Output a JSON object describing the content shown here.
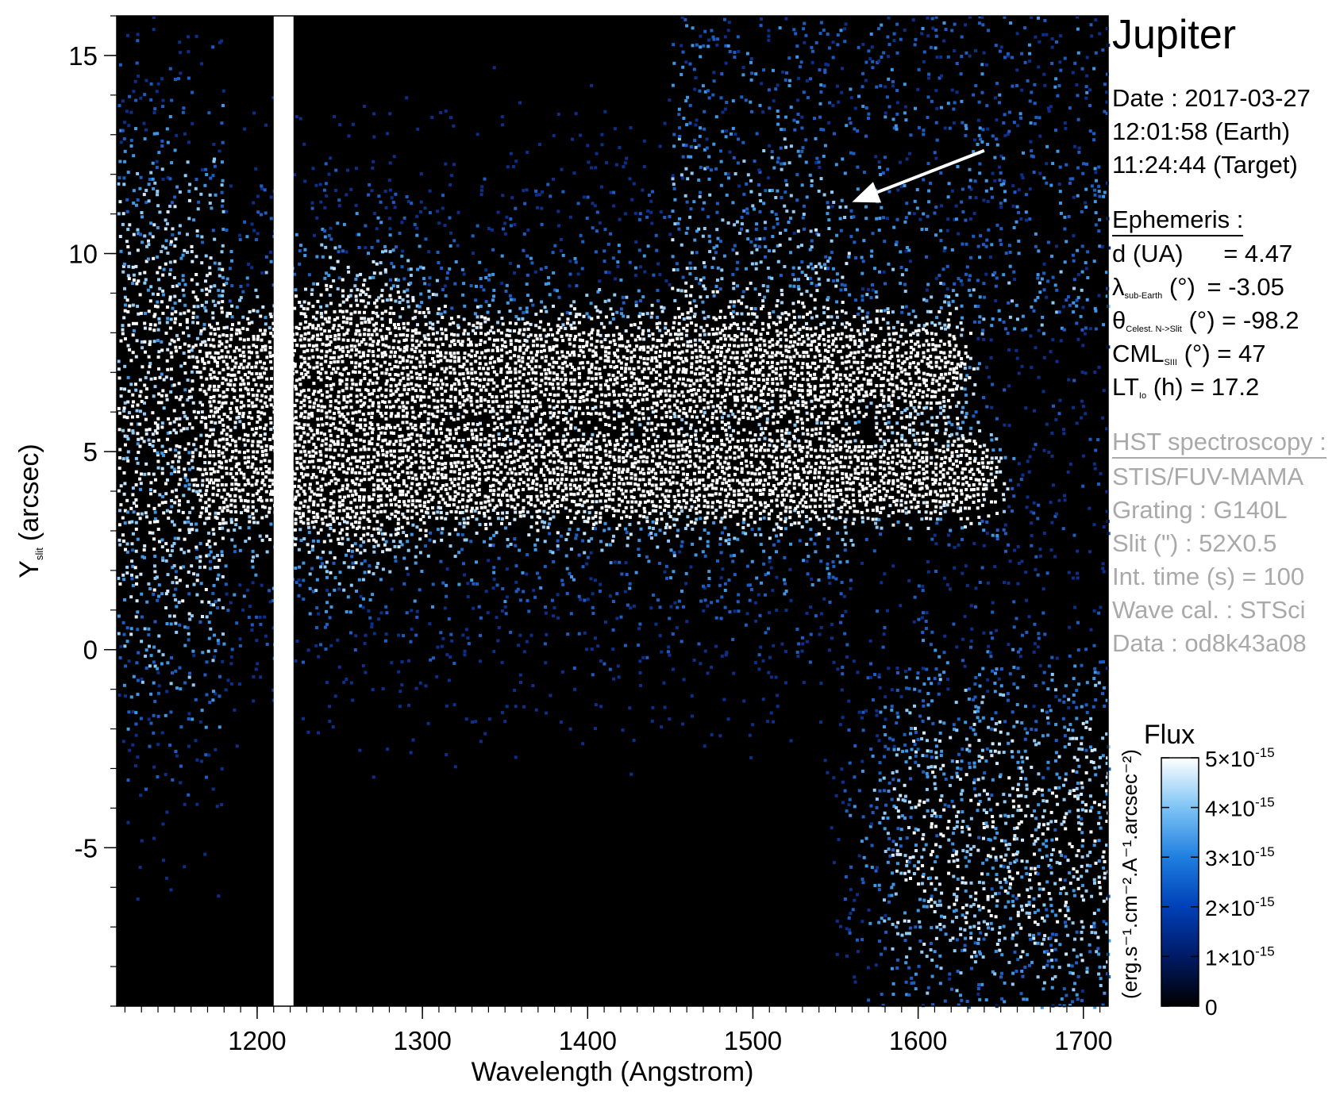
{
  "chart_data": {
    "type": "heatmap",
    "title": "",
    "xlabel": "Wavelength (Angstrom)",
    "ylabel": "Y",
    "ylabel_subscript": "slit",
    "ylabel_unit": "(arcsec)",
    "xlim": [
      1115,
      1715
    ],
    "ylim": [
      -9,
      16
    ],
    "x_ticks": [
      1200,
      1300,
      1400,
      1500,
      1600,
      1700
    ],
    "x_tick_labels": [
      "1200",
      "1300",
      "1400",
      "1500",
      "1600",
      "1700"
    ],
    "x_minor_step": 10,
    "y_ticks": [
      -5,
      0,
      5,
      10,
      15
    ],
    "y_tick_labels": [
      "-5",
      "0",
      "5",
      "10",
      "15"
    ],
    "y_minor_step": 1,
    "grid": false,
    "features": {
      "lyman_alpha_line": {
        "wavelength": 1216,
        "width": 12,
        "yrange": [
          -9,
          16
        ]
      },
      "upper_band": {
        "yrange": [
          6,
          8.2
        ],
        "xrange": [
          1160,
          1640
        ]
      },
      "lower_band": {
        "yrange": [
          3.5,
          5.3
        ],
        "xrange": [
          1160,
          1660
        ]
      },
      "arrow": {
        "from": [
          1640,
          12.6
        ],
        "to": [
          1560,
          11.3
        ]
      }
    },
    "colorbar": {
      "title": "Flux",
      "units_label": "(erg.s⁻¹.cm⁻².A⁻¹.arcsec⁻²)",
      "range": [
        0,
        5e-15
      ],
      "tick_values": [
        0,
        1e-15,
        2e-15,
        3e-15,
        4e-15,
        5e-15
      ],
      "tick_labels": [
        "0",
        "1×10",
        "2×10",
        "3×10",
        "4×10",
        "5×10"
      ],
      "tick_exponent": "-15",
      "colors": [
        "#000000",
        "#001a66",
        "#0040b8",
        "#1f7fe0",
        "#7ec4f5",
        "#ffffff"
      ]
    }
  },
  "info": {
    "target": "Jupiter",
    "date_line": "Date : 2017-03-27",
    "earth_time": "12:01:58 (Earth)",
    "target_time": "11:24:44 (Target)",
    "ephemeris_heading": "Ephemeris :",
    "ephemeris": [
      {
        "symbol": "d (UA)",
        "sub": "",
        "suffix": "",
        "value": "= 4.47"
      },
      {
        "symbol": "λ",
        "sub": "sub-Earth",
        "suffix": "(°)",
        "value": "= -3.05"
      },
      {
        "symbol": "θ",
        "sub": "Celest. N->Slit",
        "suffix": "(°)",
        "value": "= -98.2"
      },
      {
        "symbol": "CML",
        "sub": "SIII",
        "suffix": "(°)",
        "value": "= 47"
      },
      {
        "symbol": "LT",
        "sub": "Io",
        "suffix": "(h)",
        "value": "= 17.2"
      }
    ],
    "obs_heading": "HST spectroscopy :",
    "obs_lines": [
      "STIS/FUV-MAMA",
      "Grating : G140L",
      "Slit (\") : 52X0.5",
      "Int. time (s) = 100",
      "Wave cal. : STSci",
      "Data : od8k43a08"
    ]
  }
}
